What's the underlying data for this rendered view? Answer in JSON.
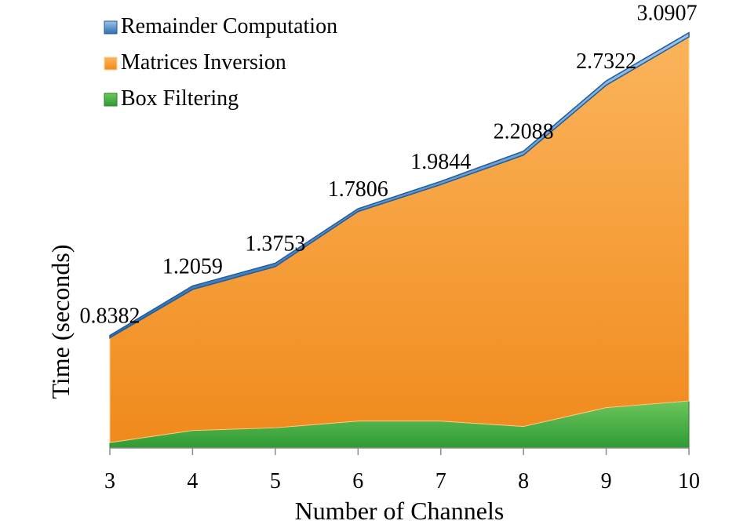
{
  "chart_data": {
    "type": "area",
    "stacked": true,
    "xlabel": "Number of Channels",
    "ylabel": "Time (seconds)",
    "categories": [
      "3",
      "4",
      "5",
      "6",
      "7",
      "8",
      "9",
      "10"
    ],
    "ylim": [
      0,
      3.2
    ],
    "grid": false,
    "legend_position": "top-left",
    "series": [
      {
        "name": "Box Filtering",
        "color": "#3aa53a",
        "values": [
          0.04,
          0.13,
          0.15,
          0.2,
          0.2,
          0.16,
          0.3,
          0.35
        ]
      },
      {
        "name": "Matrices Inversion",
        "color": "#f7901e",
        "values": [
          0.78,
          1.05,
          1.2,
          1.56,
          1.76,
          2.02,
          2.4,
          2.71
        ]
      },
      {
        "name": "Remainder Computation",
        "color": "#3f86c8",
        "values": [
          0.0182,
          0.0259,
          0.0253,
          0.0206,
          0.0244,
          0.0288,
          0.0322,
          0.0307
        ]
      }
    ],
    "total_labels": [
      "0.8382",
      "1.2059",
      "1.3753",
      "1.7806",
      "1.9844",
      "2.2088",
      "2.7322",
      "3.0907"
    ]
  }
}
